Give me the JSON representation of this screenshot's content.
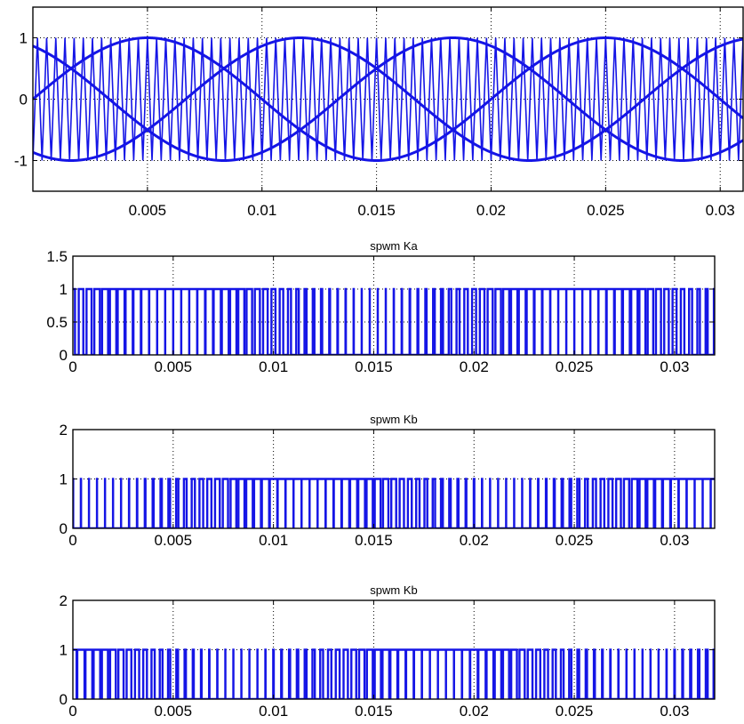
{
  "figure": {
    "background": "#ffffff",
    "line_color": "#1515e6"
  },
  "chart_data": [
    {
      "type": "line",
      "title": "",
      "xlabel": "",
      "ylabel": "",
      "xlim": [
        0,
        0.031
      ],
      "ylim": [
        -1.5,
        1.5
      ],
      "xticks": [
        0.005,
        0.01,
        0.015,
        0.02,
        0.025,
        0.03
      ],
      "xtick_labels": [
        "0.005",
        "0.01",
        "0.015",
        "0.02",
        "0.025",
        "0.03"
      ],
      "yticks": [
        -1,
        0,
        1
      ],
      "ytick_labels": [
        "-1",
        "0",
        "1"
      ],
      "grid": true,
      "series": [
        {
          "kind": "sine",
          "amplitude": 1,
          "frequency_hz": 50,
          "phase_deg": 0
        },
        {
          "kind": "sine",
          "amplitude": 1,
          "frequency_hz": 50,
          "phase_deg": -120
        },
        {
          "kind": "sine",
          "amplitude": 1,
          "frequency_hz": 50,
          "phase_deg": 120
        },
        {
          "kind": "triangle_carrier",
          "amplitude": 1,
          "frequency_hz": 2500
        }
      ]
    },
    {
      "type": "line",
      "title": "spwm Ka",
      "xlim": [
        0,
        0.032
      ],
      "ylim": [
        0,
        1.5
      ],
      "xticks": [
        0,
        0.005,
        0.01,
        0.015,
        0.02,
        0.025,
        0.03
      ],
      "xtick_labels": [
        "0",
        "0.005",
        "0.01",
        "0.015",
        "0.02",
        "0.025",
        "0.03"
      ],
      "yticks": [
        0,
        0.5,
        1,
        1.5
      ],
      "ytick_labels": [
        "0",
        "0.5",
        "1",
        "1.5"
      ],
      "grid": true,
      "series": [
        {
          "kind": "spwm_pulse",
          "levels": [
            0,
            1
          ],
          "carrier_hz": 2500,
          "reference_phase_deg": 0
        }
      ]
    },
    {
      "type": "line",
      "title": "spwm Kb",
      "xlim": [
        0,
        0.032
      ],
      "ylim": [
        0,
        2
      ],
      "xticks": [
        0,
        0.005,
        0.01,
        0.015,
        0.02,
        0.025,
        0.03
      ],
      "xtick_labels": [
        "0",
        "0.005",
        "0.01",
        "0.015",
        "0.02",
        "0.025",
        "0.03"
      ],
      "yticks": [
        0,
        1,
        2
      ],
      "ytick_labels": [
        "0",
        "1",
        "2"
      ],
      "grid": true,
      "series": [
        {
          "kind": "spwm_pulse",
          "levels": [
            0,
            1
          ],
          "carrier_hz": 2500,
          "reference_phase_deg": -120
        }
      ]
    },
    {
      "type": "line",
      "title": "spwm Kb",
      "xlim": [
        0,
        0.032
      ],
      "ylim": [
        0,
        2
      ],
      "xticks": [
        0,
        0.005,
        0.01,
        0.015,
        0.02,
        0.025,
        0.03
      ],
      "xtick_labels": [
        "0",
        "0.005",
        "0.01",
        "0.015",
        "0.02",
        "0.025",
        "0.03"
      ],
      "yticks": [
        0,
        1,
        2
      ],
      "ytick_labels": [
        "0",
        "1",
        "2"
      ],
      "grid": true,
      "series": [
        {
          "kind": "spwm_pulse",
          "levels": [
            0,
            1
          ],
          "carrier_hz": 2500,
          "reference_phase_deg": 120
        }
      ]
    }
  ]
}
